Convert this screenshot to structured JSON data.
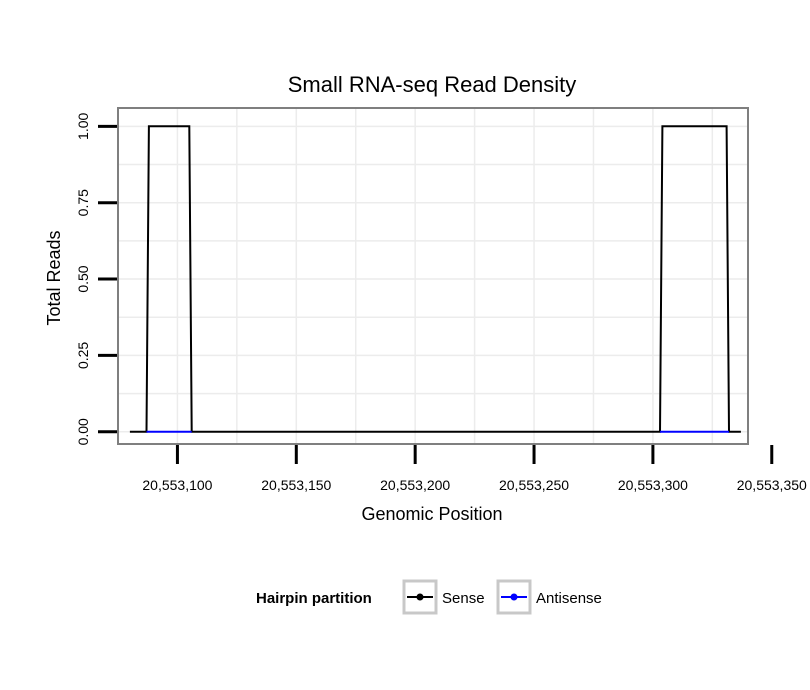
{
  "chart_data": {
    "type": "line",
    "title": "Small RNA-seq Read Density",
    "xlabel": "Genomic Position",
    "ylabel": "Total Reads",
    "xlim": [
      20553075,
      20553340
    ],
    "ylim": [
      -0.04,
      1.06
    ],
    "x_ticks": [
      20553100,
      20553150,
      20553200,
      20553250,
      20553300,
      20553350
    ],
    "x_tick_labels": [
      "20,553,100",
      "20,553,150",
      "20,553,200",
      "20,553,250",
      "20,553,300",
      "20,553,350"
    ],
    "y_ticks": [
      0,
      0.25,
      0.5,
      0.75,
      1.0
    ],
    "y_tick_labels": [
      "0.00",
      "0.25",
      "0.50",
      "0.75",
      "1.00"
    ],
    "grid": true,
    "series": [
      {
        "name": "Sense",
        "color": "#000000",
        "x": [
          20553080,
          20553087,
          20553088,
          20553105,
          20553106,
          20553303,
          20553304,
          20553331,
          20553332,
          20553337
        ],
        "y": [
          0,
          0,
          1,
          1,
          0,
          0,
          1,
          1,
          0,
          0
        ]
      },
      {
        "name": "Antisense",
        "color": "#0000ff",
        "x": [
          20553087,
          20553106,
          20553303,
          20553332
        ],
        "y": [
          0,
          0,
          0,
          0
        ]
      }
    ],
    "legend": {
      "title": "Hairpin partition",
      "position": "bottom",
      "entries": [
        "Sense",
        "Antisense"
      ]
    }
  }
}
